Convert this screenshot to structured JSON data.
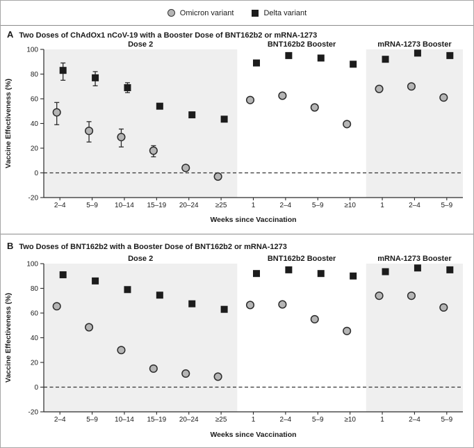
{
  "legend": {
    "items": [
      {
        "label": "Omicron variant",
        "marker": "circle"
      },
      {
        "label": "Delta variant",
        "marker": "square"
      }
    ]
  },
  "colors": {
    "omicron_fill": "#b5b5b5",
    "omicron_stroke": "#2b2b2b",
    "delta_fill": "#1c1c1c",
    "shaded_bg": "#efefef",
    "axis": "#2b2b2b",
    "zero_line": "#333333"
  },
  "chart_data": {
    "type": "scatter",
    "ylabel": "Vaccine Effectiveness (%)",
    "xlabel": "Weeks since Vaccination",
    "ylim": [
      -20,
      100
    ],
    "yticks": [
      100,
      80,
      60,
      40,
      20,
      0,
      -20
    ],
    "zero_line_dashed": true,
    "legend_position": "top-center",
    "panels": [
      {
        "label": "A",
        "title": "Two Doses of ChAdOx1 nCoV-19 with a Booster Dose of BNT162b2 or mRNA-1273",
        "sections": [
          {
            "title": "Dose 2",
            "shaded": true,
            "categories": [
              "2–4",
              "5–9",
              "10–14",
              "15–19",
              "20–24",
              "≥25"
            ],
            "series": [
              {
                "name": "Omicron variant",
                "marker": "circle",
                "values": [
                  49,
                  34,
                  29,
                  18,
                  4,
                  -3
                ],
                "ci_low": [
                  39,
                  25,
                  21,
                  13,
                  null,
                  null
                ],
                "ci_high": [
                  57,
                  41.5,
                  35.5,
                  22,
                  null,
                  null
                ]
              },
              {
                "name": "Delta variant",
                "marker": "square",
                "values": [
                  83,
                  77,
                  69,
                  54,
                  47,
                  43.5
                ],
                "ci_low": [
                  75,
                  70.5,
                  65,
                  null,
                  null,
                  null
                ],
                "ci_high": [
                  89,
                  82,
                  73,
                  null,
                  null,
                  null
                ]
              }
            ]
          },
          {
            "title": "BNT162b2 Booster",
            "shaded": false,
            "categories": [
              "1",
              "2–4",
              "5–9",
              "≥10"
            ],
            "series": [
              {
                "name": "Omicron variant",
                "marker": "circle",
                "values": [
                  59,
                  62.5,
                  53,
                  39.5
                ]
              },
              {
                "name": "Delta variant",
                "marker": "square",
                "values": [
                  89,
                  95,
                  93,
                  88
                ]
              }
            ]
          },
          {
            "title": "mRNA-1273 Booster",
            "shaded": true,
            "categories": [
              "1",
              "2–4",
              "5–9"
            ],
            "series": [
              {
                "name": "Omicron variant",
                "marker": "circle",
                "values": [
                  68,
                  70,
                  61
                ]
              },
              {
                "name": "Delta variant",
                "marker": "square",
                "values": [
                  92,
                  97,
                  95
                ]
              }
            ]
          }
        ]
      },
      {
        "label": "B",
        "title": "Two Doses of BNT162b2 with a Booster Dose of BNT162b2 or mRNA-1273",
        "sections": [
          {
            "title": "Dose 2",
            "shaded": true,
            "categories": [
              "2–4",
              "5–9",
              "10–14",
              "15–19",
              "20–24",
              "≥25"
            ],
            "series": [
              {
                "name": "Omicron variant",
                "marker": "circle",
                "values": [
                  65.5,
                  48.5,
                  30,
                  15,
                  11,
                  8.5
                ]
              },
              {
                "name": "Delta variant",
                "marker": "square",
                "values": [
                  91,
                  86,
                  79,
                  74.5,
                  67.5,
                  63
                ]
              }
            ]
          },
          {
            "title": "BNT162b2 Booster",
            "shaded": false,
            "categories": [
              "1",
              "2–4",
              "5–9",
              "≥10"
            ],
            "series": [
              {
                "name": "Omicron variant",
                "marker": "circle",
                "values": [
                  66.5,
                  67,
                  55,
                  45.5
                ]
              },
              {
                "name": "Delta variant",
                "marker": "square",
                "values": [
                  92,
                  95,
                  92,
                  90
                ]
              }
            ]
          },
          {
            "title": "mRNA-1273 Booster",
            "shaded": true,
            "categories": [
              "1",
              "2–4",
              "5–9"
            ],
            "series": [
              {
                "name": "Omicron variant",
                "marker": "circle",
                "values": [
                  74,
                  74,
                  64.5
                ]
              },
              {
                "name": "Delta variant",
                "marker": "square",
                "values": [
                  93.5,
                  96.5,
                  95
                ]
              }
            ]
          }
        ]
      }
    ]
  }
}
